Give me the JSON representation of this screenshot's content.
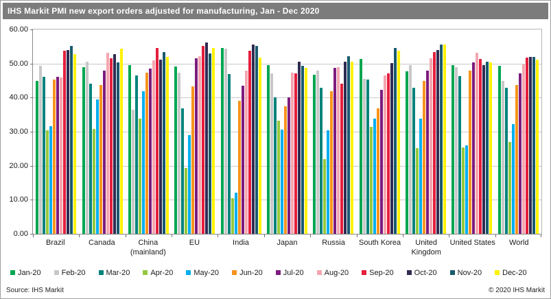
{
  "window": {
    "title": "IHS Markit PMI new export orders adjusted for manufacturing, Jan - Dec 2020",
    "source": "Source: IHS Markit",
    "copyright": "© 2020 IHS Markit"
  },
  "chart_data": {
    "type": "bar",
    "grouped": true,
    "title": "IHS Markit PMI new export orders adjusted for manufacturing, Jan - Dec 2020",
    "xlabel": "",
    "ylabel": "",
    "ylim": [
      0,
      60
    ],
    "ytick_step": 10,
    "ytick_labels": [
      "60.00",
      "50.00",
      "40.00",
      "30.00",
      "20.00",
      "10.00",
      "0.00"
    ],
    "grid": "horizontal",
    "legend_position": "bottom",
    "categories": [
      "Brazil",
      "Canada",
      "China (mainland)",
      "EU",
      "India",
      "Japan",
      "Russia",
      "South Korea",
      "United Kingdom",
      "United States",
      "World"
    ],
    "category_display": [
      "Brazil",
      "Canada",
      "China\n(mainland)",
      "EU",
      "India",
      "Japan",
      "Russia",
      "South Korea",
      "United\nKingdom",
      "United States",
      "World"
    ],
    "series": [
      {
        "name": "Jan-20",
        "color": "#00A651",
        "values": [
          45.0,
          49.1,
          49.7,
          49.3,
          54.8,
          49.6,
          46.8,
          51.5,
          47.8,
          49.6,
          49.5
        ]
      },
      {
        "name": "Feb-20",
        "color": "#C8C8C8",
        "values": [
          49.4,
          50.8,
          36.5,
          47.5,
          54.5,
          47.3,
          48.0,
          45.7,
          49.8,
          49.0,
          45.0
        ]
      },
      {
        "name": "Mar-20",
        "color": "#00837B",
        "values": [
          46.3,
          44.3,
          46.7,
          37.0,
          47.1,
          40.3,
          43.1,
          45.5,
          43.1,
          46.5,
          43.0
        ]
      },
      {
        "name": "Apr-20",
        "color": "#94C83D",
        "values": [
          30.6,
          31.0,
          34.0,
          19.4,
          10.5,
          33.3,
          22.1,
          31.5,
          25.3,
          25.5,
          27.1
        ]
      },
      {
        "name": "May-20",
        "color": "#00AEEF",
        "values": [
          31.8,
          39.5,
          42.0,
          29.0,
          12.1,
          30.8,
          30.5,
          34.0,
          34.0,
          26.0,
          32.3
        ]
      },
      {
        "name": "Jun-20",
        "color": "#F7941D",
        "values": [
          45.4,
          43.8,
          47.5,
          43.5,
          39.1,
          37.5,
          42.1,
          37.0,
          45.0,
          48.0,
          43.8
        ]
      },
      {
        "name": "Jul-20",
        "color": "#7D1B7E",
        "values": [
          46.2,
          48.0,
          48.7,
          51.7,
          43.7,
          40.3,
          48.8,
          42.5,
          48.0,
          50.5,
          47.3
        ]
      },
      {
        "name": "Aug-20",
        "color": "#F4A6B0",
        "values": [
          46.0,
          53.3,
          51.1,
          52.3,
          48.0,
          47.5,
          49.1,
          46.7,
          51.7,
          53.3,
          50.0
        ]
      },
      {
        "name": "Sep-20",
        "color": "#E41E3C",
        "values": [
          54.0,
          51.7,
          54.7,
          55.4,
          54.0,
          47.3,
          44.2,
          47.3,
          53.5,
          51.6,
          52.0
        ]
      },
      {
        "name": "Oct-20",
        "color": "#2F2B52",
        "values": [
          54.2,
          53.0,
          51.3,
          56.3,
          55.7,
          50.8,
          50.7,
          50.3,
          54.1,
          49.6,
          52.1
        ]
      },
      {
        "name": "Nov-20",
        "color": "#1A5A6E",
        "values": [
          55.4,
          50.5,
          53.5,
          53.1,
          55.3,
          49.5,
          52.4,
          54.8,
          55.7,
          50.8,
          52.2
        ]
      },
      {
        "name": "Dec-20",
        "color": "#FFF200",
        "values": [
          52.9,
          54.5,
          52.1,
          54.8,
          52.0,
          48.8,
          50.7,
          54.0,
          55.7,
          50.6,
          51.4
        ]
      }
    ]
  }
}
